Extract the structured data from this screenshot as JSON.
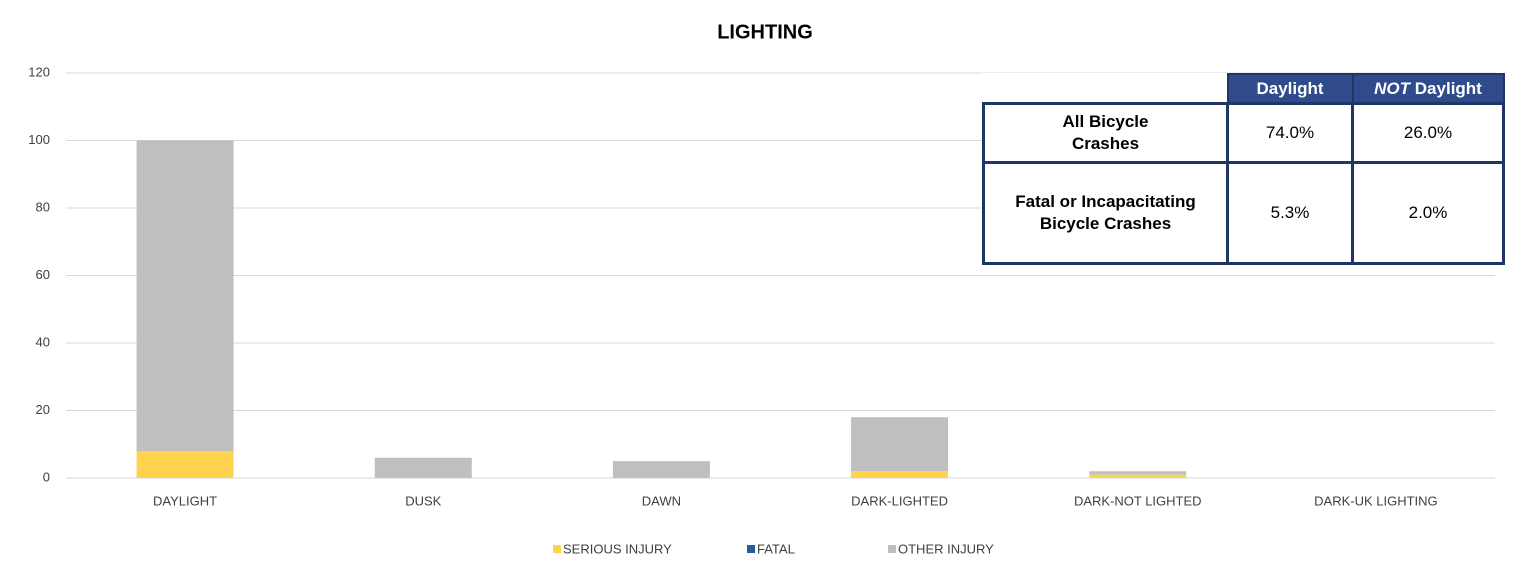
{
  "chart_data": {
    "type": "stacked_bar",
    "title": "LIGHTING",
    "categories": [
      "DAYLIGHT",
      "DUSK",
      "DAWN",
      "DARK-LIGHTED",
      "DARK-NOT LIGHTED",
      "DARK-UK LIGHTING"
    ],
    "series": [
      {
        "name": "SERIOUS INJURY",
        "color": "#ffd34e",
        "values": [
          8,
          0,
          0,
          2,
          1,
          0
        ]
      },
      {
        "name": "FATAL",
        "color": "#1f5fa0",
        "values": [
          0,
          0,
          0,
          0,
          0,
          0
        ]
      },
      {
        "name": "OTHER INJURY",
        "color": "#bfbfbf",
        "values": [
          92,
          6,
          5,
          16,
          1,
          0
        ]
      }
    ],
    "ylim": [
      0,
      120
    ],
    "yticks": [
      0,
      20,
      40,
      60,
      80,
      100,
      120
    ],
    "grid": true,
    "legend": "bottom"
  },
  "table": {
    "columns": [
      "Daylight",
      {
        "em": "NOT",
        "rest": "Daylight"
      }
    ],
    "rows": [
      {
        "label": "All Bicycle\nCrashes",
        "cells": [
          "74.0%",
          "26.0%"
        ]
      },
      {
        "label": "Fatal or Incapacitating\nBicycle Crashes",
        "cells": [
          "5.3%",
          "2.0%"
        ]
      }
    ]
  }
}
